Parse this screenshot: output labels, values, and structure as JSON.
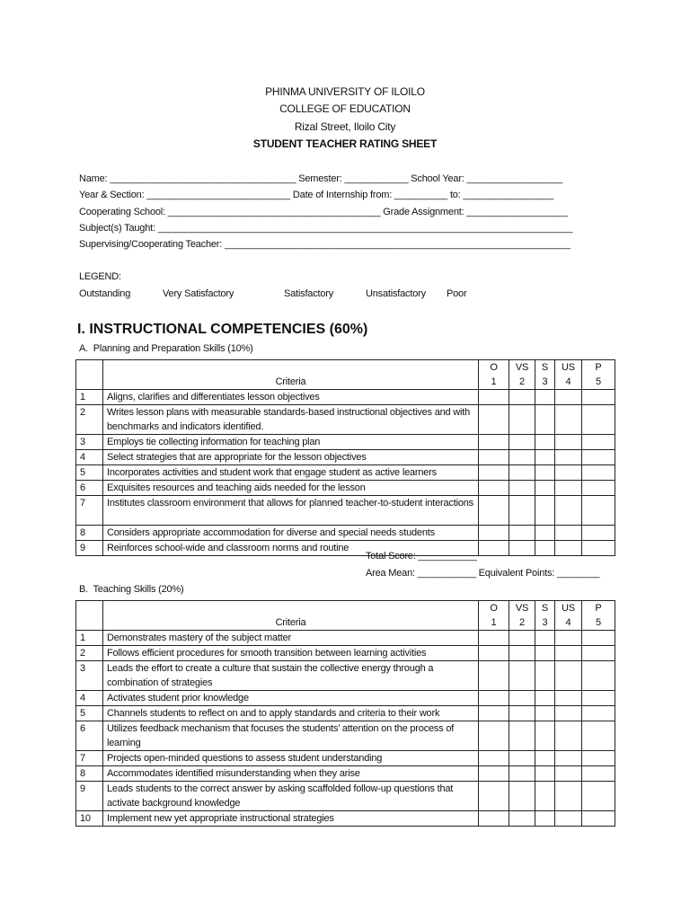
{
  "header": {
    "university": "PHINMA UNIVERSITY OF ILOILO",
    "college": "COLLEGE OF EDUCATION",
    "address": "Rizal Street, Iloilo City",
    "title": "STUDENT TEACHER RATING SHEET"
  },
  "fields": [
    "Name: ___________________________________ Semester: ____________ School Year: __________________",
    "Year & Section: ___________________________ Date of Internship from: __________ to: _________________",
    "Cooperating School: ________________________________________ Grade Assignment: ___________________",
    "Subject(s) Taught: ______________________________________________________________________________",
    "Supervising/Cooperating Teacher: _________________________________________________________________"
  ],
  "legend": {
    "label": "LEGEND:",
    "items": [
      "Outstanding",
      "Very Satisfactory",
      "Satisfactory",
      "Unsatisfactory",
      "Poor"
    ]
  },
  "section": "I. INSTRUCTIONAL COMPETENCIES (60%)",
  "rating_headers": [
    {
      "abbr": "O",
      "num": "1"
    },
    {
      "abbr": "VS",
      "num": "2"
    },
    {
      "abbr": "S",
      "num": "3"
    },
    {
      "abbr": "US",
      "num": "4"
    },
    {
      "abbr": "P",
      "num": "5"
    }
  ],
  "criteria_header": "Criteria",
  "tableA": {
    "title": "A.  Planning and Preparation Skills (10%)",
    "rows": [
      "Aligns, clarifies and differentiates lesson objectives",
      "Writes lesson plans with measurable standards-based instructional objectives and with benchmarks and indicators identified.",
      "Employs tie collecting information for teaching plan",
      "Select strategies that are appropriate for the lesson objectives",
      "Incorporates activities and student work that engage student as active learners",
      "Exquisites resources and teaching aids needed for the lesson",
      "Institutes classroom environment that allows for planned teacher-to-student interactions",
      "Considers appropriate accommodation for diverse and special needs students",
      "Reinforces school-wide and classroom norms and routine"
    ],
    "total_score": "Total Score: ___________",
    "area_mean": "Area Mean: ___________ Equivalent Points: ________"
  },
  "tableB": {
    "title": "B.  Teaching Skills (20%)",
    "rows": [
      "Demonstrates mastery of the subject matter",
      "Follows efficient procedures for smooth transition between learning activities",
      "Leads the effort to create a culture that sustain the collective energy through a combination of strategies",
      "Activates student prior knowledge",
      "Channels students to reflect on and to apply standards and criteria to their work",
      "Utilizes feedback mechanism that focuses the students’ attention on the process of learning",
      "Projects open-minded questions to assess student understanding",
      "Accommodates identified misunderstanding when they arise",
      "Leads students to the correct answer by asking scaffolded follow-up questions that activate background knowledge",
      "Implement new yet appropriate instructional strategies"
    ]
  }
}
